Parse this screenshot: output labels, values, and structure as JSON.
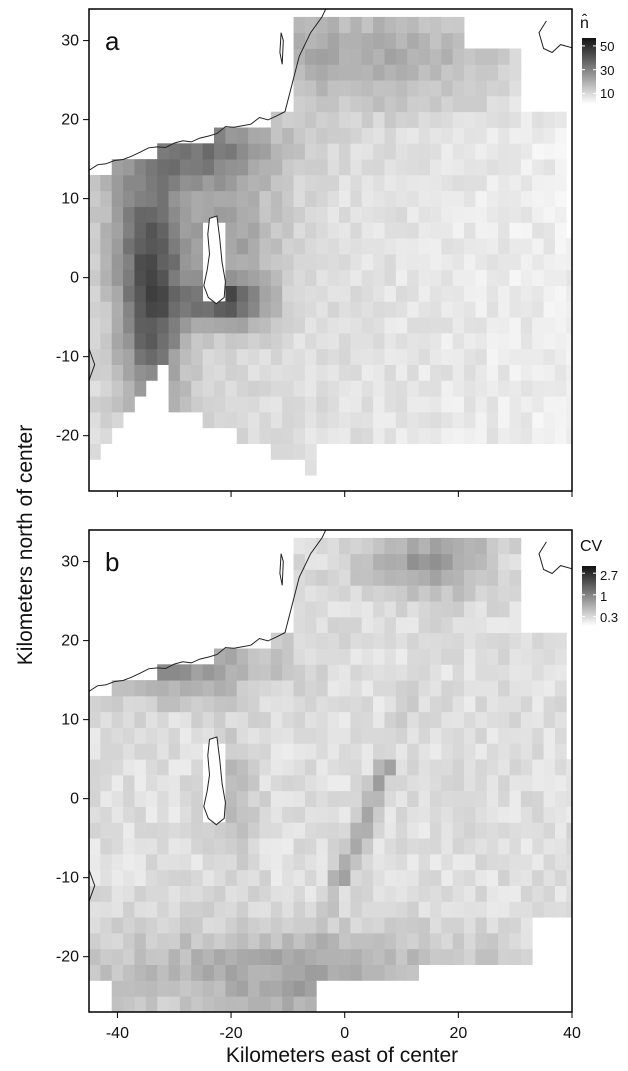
{
  "chart_data": [
    {
      "type": "heatmap",
      "panel_label": "a",
      "legend_title": "n̂",
      "legend_ticks": [
        50,
        30,
        10
      ],
      "legend_range": [
        0,
        60
      ],
      "xlim": [
        -45,
        40
      ],
      "ylim": [
        -27,
        34
      ],
      "xticks": [
        -40,
        -20,
        0,
        20,
        40
      ],
      "yticks": [
        30,
        20,
        10,
        0,
        -10,
        -20
      ],
      "xtick_labels_visible": false,
      "cell_size_km": 2,
      "cells_note_unused": ""
    },
    {
      "type": "heatmap",
      "panel_label": "b",
      "legend_title": "CV",
      "legend_ticks": [
        2.7,
        1.0,
        0.3
      ],
      "legend_range": [
        0,
        3
      ],
      "xlim": [
        -45,
        40
      ],
      "ylim": [
        -27,
        34
      ],
      "xticks": [
        -40,
        -20,
        0,
        20,
        40
      ],
      "yticks": [
        30,
        20,
        10,
        0,
        -10,
        -20
      ],
      "xtick_labels_visible": true,
      "cell_size_km": 2
    }
  ],
  "axes": {
    "xlabel": "Kilometers east of center",
    "ylabel": "Kilometers north of center"
  },
  "colors": {
    "low": "#ffffff",
    "high": "#111111",
    "coastline": "#222222"
  }
}
